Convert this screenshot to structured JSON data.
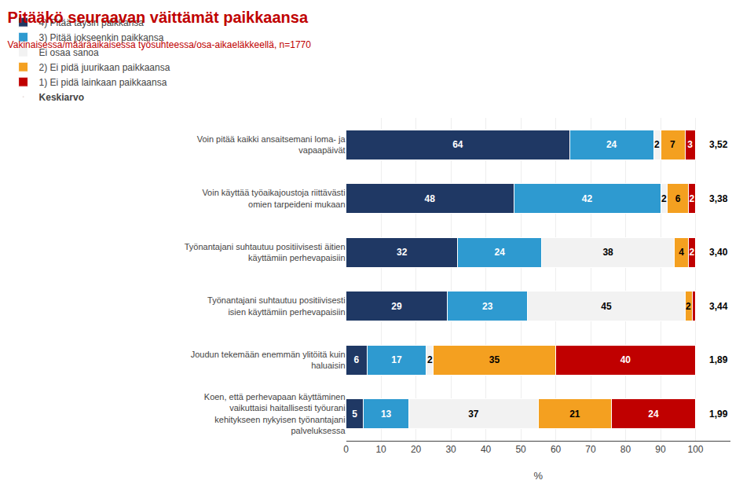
{
  "chart_data": {
    "type": "bar",
    "orientation": "horizontal",
    "stacked": true,
    "data_labels": true,
    "grid": true,
    "legend": "top",
    "title": "Pitääkö seuraavan väittämät paikkaansa",
    "subtitle": "Vakinaisessa/määräaikaisessa työsuhteessa/osa-aikaeläkkeellä, n=1770",
    "title_color": "#c00000",
    "subtitle_color": "#c00000",
    "xlabel": "%",
    "xlim": [
      0,
      110
    ],
    "xticks": [
      0,
      10,
      20,
      30,
      40,
      50,
      60,
      70,
      80,
      90,
      100
    ],
    "categories": [
      "Voin pitää kaikki ansaitsemani loma- ja\nvapaapäivät",
      "Voin käyttää työaikajoustoja riittävästi\nomien tarpeideni mukaan",
      "Työnantajani suhtautuu positiivisesti äitien\nkäyttämiin perhevapaisiin",
      "Työnantajani suhtautuu positiivisesti\nisien käyttämiin perhevapaisiin",
      "Joudun tekemään enemmän ylitöitä kuin\nhaluaisin",
      "Koen, että perhevapaan käyttäminen\nvaikuttaisi haitallisesti työurani\nkehitykseen nykyisen työnantajani\npalveluksessa"
    ],
    "series": [
      {
        "name": "4) Pitää täysin paikkansa",
        "color": "#1f3864",
        "values": [
          64,
          48,
          32,
          29,
          6,
          5
        ]
      },
      {
        "name": "3) Pitää jokseenkin paikkansa",
        "color": "#2e9ad0",
        "values": [
          24,
          42,
          24,
          23,
          17,
          13
        ]
      },
      {
        "name": "Ei osaa sanoa",
        "color": "#f2f2f2",
        "values": [
          2,
          2,
          38,
          45,
          2,
          37
        ]
      },
      {
        "name": "2) Ei pidä juurikaan paikkaansa",
        "color": "#f4a020",
        "values": [
          7,
          6,
          4,
          2,
          35,
          21
        ]
      },
      {
        "name": "1) Ei pidä lainkaan paikkaansa",
        "color": "#c00000",
        "values": [
          3,
          2,
          2,
          1,
          40,
          24
        ],
        "value_labels": [
          "3",
          "2",
          "2",
          null,
          "40",
          "24"
        ]
      }
    ],
    "annotations": {
      "name": "Keskiarvo",
      "texts": [
        "3,52",
        "3,38",
        "3,40",
        "3,44",
        "1,89",
        "1,99"
      ]
    }
  }
}
